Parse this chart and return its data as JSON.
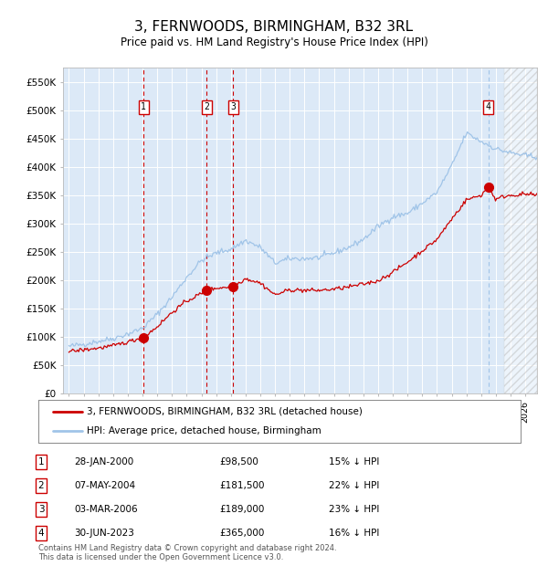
{
  "title": "3, FERNWOODS, BIRMINGHAM, B32 3RL",
  "subtitle": "Price paid vs. HM Land Registry's House Price Index (HPI)",
  "title_fontsize": 11,
  "subtitle_fontsize": 8.5,
  "plot_bg_color": "#dce9f7",
  "ylabel_ticks": [
    "£0",
    "£50K",
    "£100K",
    "£150K",
    "£200K",
    "£250K",
    "£300K",
    "£350K",
    "£400K",
    "£450K",
    "£500K",
    "£550K"
  ],
  "ytick_vals": [
    0,
    50000,
    100000,
    150000,
    200000,
    250000,
    300000,
    350000,
    400000,
    450000,
    500000,
    550000
  ],
  "ylim": [
    0,
    575000
  ],
  "xlim_start": 1994.6,
  "xlim_end": 2026.8,
  "sale_dates": [
    2000.07,
    2004.36,
    2006.17,
    2023.5
  ],
  "sale_prices": [
    98500,
    181500,
    189000,
    365000
  ],
  "sale_labels": [
    "1",
    "2",
    "3",
    "4"
  ],
  "hpi_line_color": "#a0c4e8",
  "price_line_color": "#cc0000",
  "sale_marker_color": "#cc0000",
  "vline_color_red": "#cc0000",
  "vline_color_blue": "#a0c4e8",
  "hatch_start": 2024.58,
  "footer_text": "Contains HM Land Registry data © Crown copyright and database right 2024.\nThis data is licensed under the Open Government Licence v3.0.",
  "legend_label1": "3, FERNWOODS, BIRMINGHAM, B32 3RL (detached house)",
  "legend_label2": "HPI: Average price, detached house, Birmingham",
  "table_rows": [
    [
      "1",
      "28-JAN-2000",
      "£98,500",
      "15% ↓ HPI"
    ],
    [
      "2",
      "07-MAY-2004",
      "£181,500",
      "22% ↓ HPI"
    ],
    [
      "3",
      "03-MAR-2006",
      "£189,000",
      "23% ↓ HPI"
    ],
    [
      "4",
      "30-JUN-2023",
      "£365,000",
      "16% ↓ HPI"
    ]
  ]
}
